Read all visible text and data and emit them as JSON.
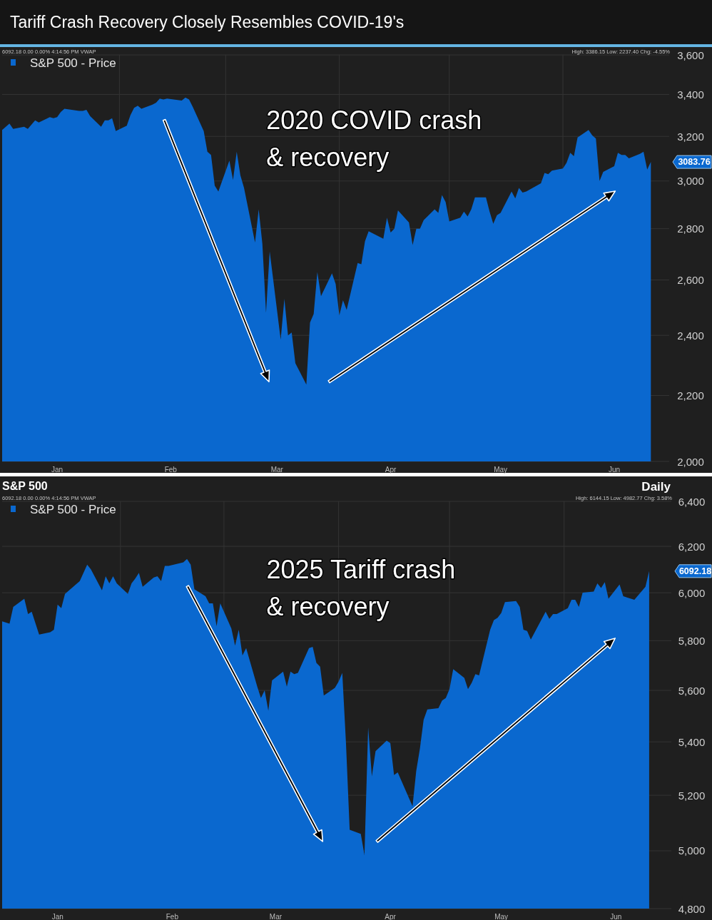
{
  "chart_data": [
    {
      "type": "area",
      "title": "Tariff Crash Recovery Closely Resembles COVID-19's",
      "annotations": [
        "6092.18 0.00 0.00% 4:14:56 PM VWAP",
        "High: 3386.15 Low: 2237.40 Chg: -4.55%",
        "2020 COVID crash\n& recovery",
        "3083.76"
      ],
      "x": [
        "2019-12-31",
        "2020-01-02",
        "2020-01-03",
        "2020-01-06",
        "2020-01-07",
        "2020-01-08",
        "2020-01-09",
        "2020-01-10",
        "2020-01-13",
        "2020-01-14",
        "2020-01-15",
        "2020-01-16",
        "2020-01-17",
        "2020-01-21",
        "2020-01-22",
        "2020-01-23",
        "2020-01-24",
        "2020-01-27",
        "2020-01-28",
        "2020-01-29",
        "2020-01-30",
        "2020-01-31",
        "2020-02-03",
        "2020-02-04",
        "2020-02-05",
        "2020-02-06",
        "2020-02-07",
        "2020-02-10",
        "2020-02-11",
        "2020-02-12",
        "2020-02-13",
        "2020-02-14",
        "2020-02-18",
        "2020-02-19",
        "2020-02-20",
        "2020-02-21",
        "2020-02-24",
        "2020-02-25",
        "2020-02-26",
        "2020-02-27",
        "2020-02-28",
        "2020-03-02",
        "2020-03-03",
        "2020-03-04",
        "2020-03-05",
        "2020-03-06",
        "2020-03-09",
        "2020-03-10",
        "2020-03-11",
        "2020-03-12",
        "2020-03-13",
        "2020-03-16",
        "2020-03-17",
        "2020-03-18",
        "2020-03-19",
        "2020-03-20",
        "2020-03-23",
        "2020-03-24",
        "2020-03-25",
        "2020-03-26",
        "2020-03-27",
        "2020-03-30",
        "2020-03-31",
        "2020-04-01",
        "2020-04-02",
        "2020-04-03",
        "2020-04-06",
        "2020-04-07",
        "2020-04-08",
        "2020-04-09",
        "2020-04-13",
        "2020-04-14",
        "2020-04-15",
        "2020-04-16",
        "2020-04-17",
        "2020-04-20",
        "2020-04-21",
        "2020-04-22",
        "2020-04-23",
        "2020-04-24",
        "2020-04-27",
        "2020-04-28",
        "2020-04-29",
        "2020-04-30",
        "2020-05-01",
        "2020-05-04",
        "2020-05-05",
        "2020-05-06",
        "2020-05-07",
        "2020-05-08",
        "2020-05-11",
        "2020-05-12",
        "2020-05-13",
        "2020-05-14",
        "2020-05-15",
        "2020-05-18",
        "2020-05-19",
        "2020-05-20",
        "2020-05-21",
        "2020-05-22",
        "2020-05-26",
        "2020-05-27",
        "2020-05-28",
        "2020-05-29",
        "2020-06-01",
        "2020-06-02",
        "2020-06-03",
        "2020-06-04",
        "2020-06-05",
        "2020-06-08",
        "2020-06-09",
        "2020-06-10",
        "2020-06-11",
        "2020-06-12",
        "2020-06-15",
        "2020-06-16",
        "2020-06-17",
        "2020-06-18",
        "2020-06-19",
        "2020-06-22",
        "2020-06-23",
        "2020-06-24",
        "2020-06-25"
      ],
      "series": [
        {
          "name": "S&P 500 - Price",
          "color": "#0a68cf",
          "values": [
            3230,
            3260,
            3235,
            3245,
            3235,
            3255,
            3275,
            3265,
            3290,
            3285,
            3290,
            3315,
            3330,
            3320,
            3320,
            3325,
            3295,
            3245,
            3275,
            3275,
            3285,
            3225,
            3250,
            3300,
            3335,
            3345,
            3330,
            3350,
            3360,
            3380,
            3375,
            3380,
            3370,
            3385,
            3375,
            3340,
            3225,
            3130,
            3115,
            2980,
            2955,
            3090,
            3005,
            3130,
            3025,
            2970,
            2745,
            2880,
            2740,
            2480,
            2710,
            2385,
            2530,
            2400,
            2410,
            2305,
            2235,
            2445,
            2475,
            2630,
            2540,
            2625,
            2585,
            2470,
            2525,
            2490,
            2665,
            2660,
            2750,
            2790,
            2760,
            2845,
            2785,
            2800,
            2875,
            2825,
            2735,
            2800,
            2800,
            2835,
            2880,
            2865,
            2940,
            2910,
            2830,
            2845,
            2870,
            2850,
            2880,
            2930,
            2930,
            2870,
            2820,
            2855,
            2865,
            2955,
            2925,
            2970,
            2950,
            2955,
            2990,
            3035,
            3030,
            3045,
            3055,
            3080,
            3125,
            3110,
            3195,
            3230,
            3205,
            3190,
            3000,
            3040,
            3065,
            3125,
            3115,
            3115,
            3100,
            3120,
            3130,
            3050,
            3083.76
          ]
        }
      ],
      "xlim": [
        "2019-12-31",
        "2020-06-30"
      ],
      "xticks": [
        {
          "value": "2020-01-15",
          "label": "Jan"
        },
        {
          "value": "2020-02-01",
          "label": null
        },
        {
          "value": "2020-02-15",
          "label": "Feb"
        },
        {
          "value": "2020-03-01",
          "label": null
        },
        {
          "value": "2020-03-15",
          "label": "Mar"
        },
        {
          "value": "2020-04-01",
          "label": null
        },
        {
          "value": "2020-04-15",
          "label": "Apr"
        },
        {
          "value": "2020-05-01",
          "label": null
        },
        {
          "value": "2020-05-15",
          "label": "May"
        },
        {
          "value": "2020-06-01",
          "label": null
        },
        {
          "value": "2020-06-15",
          "label": "Jun"
        }
      ],
      "ylim": [
        2000,
        3600
      ],
      "yticks": [
        {
          "value": 2000,
          "label": "2,000"
        },
        {
          "value": 2200,
          "label": "2,200"
        },
        {
          "value": 2400,
          "label": "2,400"
        },
        {
          "value": 2600,
          "label": "2,600"
        },
        {
          "value": 2800,
          "label": "2,800"
        },
        {
          "value": 3000,
          "label": "3,000"
        },
        {
          "value": 3200,
          "label": "3,200"
        },
        {
          "value": 3400,
          "label": "3,400"
        },
        {
          "value": 3600,
          "label": "3,600"
        }
      ],
      "log": true,
      "grid": true,
      "legend": "top left"
    },
    {
      "type": "area",
      "title": "S&P 500",
      "subtitle": "Daily",
      "annotations": [
        "6092.18 0.00 0.00% 4:14:56 PM VWAP",
        "High: 6144.15 Low: 4982.77 Chg: 3.58%",
        "2025 Tariff crash\n& recovery",
        "6092.18"
      ],
      "x": [
        "2024-12-31",
        "2025-01-02",
        "2025-01-03",
        "2025-01-06",
        "2025-01-07",
        "2025-01-08",
        "2025-01-10",
        "2025-01-13",
        "2025-01-14",
        "2025-01-15",
        "2025-01-16",
        "2025-01-17",
        "2025-01-21",
        "2025-01-22",
        "2025-01-23",
        "2025-01-24",
        "2025-01-27",
        "2025-01-28",
        "2025-01-29",
        "2025-01-30",
        "2025-01-31",
        "2025-02-03",
        "2025-02-04",
        "2025-02-05",
        "2025-02-06",
        "2025-02-07",
        "2025-02-10",
        "2025-02-11",
        "2025-02-12",
        "2025-02-13",
        "2025-02-14",
        "2025-02-18",
        "2025-02-19",
        "2025-02-20",
        "2025-02-21",
        "2025-02-24",
        "2025-02-25",
        "2025-02-26",
        "2025-02-27",
        "2025-02-28",
        "2025-03-03",
        "2025-03-04",
        "2025-03-05",
        "2025-03-06",
        "2025-03-07",
        "2025-03-10",
        "2025-03-11",
        "2025-03-12",
        "2025-03-13",
        "2025-03-14",
        "2025-03-17",
        "2025-03-18",
        "2025-03-19",
        "2025-03-20",
        "2025-03-21",
        "2025-03-24",
        "2025-03-25",
        "2025-03-26",
        "2025-03-27",
        "2025-03-28",
        "2025-03-31",
        "2025-04-01",
        "2025-04-02",
        "2025-04-03",
        "2025-04-04",
        "2025-04-07",
        "2025-04-08",
        "2025-04-09",
        "2025-04-10",
        "2025-04-11",
        "2025-04-14",
        "2025-04-15",
        "2025-04-16",
        "2025-04-17",
        "2025-04-21",
        "2025-04-22",
        "2025-04-23",
        "2025-04-24",
        "2025-04-25",
        "2025-04-28",
        "2025-04-29",
        "2025-04-30",
        "2025-05-01",
        "2025-05-02",
        "2025-05-05",
        "2025-05-06",
        "2025-05-07",
        "2025-05-08",
        "2025-05-09",
        "2025-05-12",
        "2025-05-13",
        "2025-05-14",
        "2025-05-15",
        "2025-05-16",
        "2025-05-19",
        "2025-05-20",
        "2025-05-21",
        "2025-05-22",
        "2025-05-23",
        "2025-05-27",
        "2025-05-28",
        "2025-05-29",
        "2025-05-30",
        "2025-06-02",
        "2025-06-03",
        "2025-06-04",
        "2025-06-05",
        "2025-06-06",
        "2025-06-09",
        "2025-06-10",
        "2025-06-11",
        "2025-06-12",
        "2025-06-13",
        "2025-06-16",
        "2025-06-17",
        "2025-06-18",
        "2025-06-20",
        "2025-06-23",
        "2025-06-24"
      ],
      "series": [
        {
          "name": "S&P 500 - Price",
          "color": "#0a68cf",
          "values": [
            5880,
            5870,
            5940,
            5975,
            5910,
            5920,
            5825,
            5835,
            5845,
            5950,
            5935,
            5995,
            6050,
            6085,
            6120,
            6100,
            6010,
            6070,
            6040,
            6070,
            6040,
            5995,
            6040,
            6060,
            6085,
            6025,
            6065,
            6070,
            6050,
            6115,
            6115,
            6130,
            6145,
            6120,
            6015,
            5985,
            5955,
            5955,
            5860,
            5955,
            5850,
            5780,
            5845,
            5740,
            5770,
            5615,
            5570,
            5600,
            5520,
            5640,
            5675,
            5615,
            5675,
            5665,
            5670,
            5770,
            5775,
            5710,
            5695,
            5580,
            5610,
            5635,
            5670,
            5395,
            5075,
            5060,
            4985,
            5455,
            5270,
            5365,
            5405,
            5395,
            5275,
            5285,
            5160,
            5290,
            5375,
            5485,
            5525,
            5530,
            5560,
            5570,
            5605,
            5685,
            5650,
            5605,
            5630,
            5665,
            5660,
            5845,
            5885,
            5895,
            5915,
            5960,
            5965,
            5940,
            5845,
            5840,
            5805,
            5920,
            5890,
            5910,
            5910,
            5935,
            5970,
            5970,
            5940,
            6000,
            6005,
            6040,
            6020,
            6045,
            5975,
            6035,
            5985,
            5980,
            5970,
            6025,
            6092.18
          ]
        }
      ],
      "xlim": [
        "2024-12-31",
        "2025-06-30"
      ],
      "xticks": [
        {
          "value": "2025-01-15",
          "label": "Jan"
        },
        {
          "value": "2025-02-01",
          "label": null
        },
        {
          "value": "2025-02-15",
          "label": "Feb"
        },
        {
          "value": "2025-03-01",
          "label": null
        },
        {
          "value": "2025-03-15",
          "label": "Mar"
        },
        {
          "value": "2025-04-01",
          "label": null
        },
        {
          "value": "2025-04-15",
          "label": "Apr"
        },
        {
          "value": "2025-05-01",
          "label": null
        },
        {
          "value": "2025-05-15",
          "label": "May"
        },
        {
          "value": "2025-06-01",
          "label": null
        },
        {
          "value": "2025-06-15",
          "label": "Jun"
        }
      ],
      "ylim": [
        4800,
        6400
      ],
      "yticks": [
        {
          "value": 4800,
          "label": "4,800"
        },
        {
          "value": 5000,
          "label": "5,000"
        },
        {
          "value": 5200,
          "label": "5,200"
        },
        {
          "value": 5400,
          "label": "5,400"
        },
        {
          "value": 5600,
          "label": "5,600"
        },
        {
          "value": 5800,
          "label": "5,800"
        },
        {
          "value": 6000,
          "label": "6,000"
        },
        {
          "value": 6200,
          "label": "6,200"
        },
        {
          "value": 6400,
          "label": "6,400"
        }
      ],
      "log": true,
      "grid": true,
      "legend": "top left"
    }
  ]
}
